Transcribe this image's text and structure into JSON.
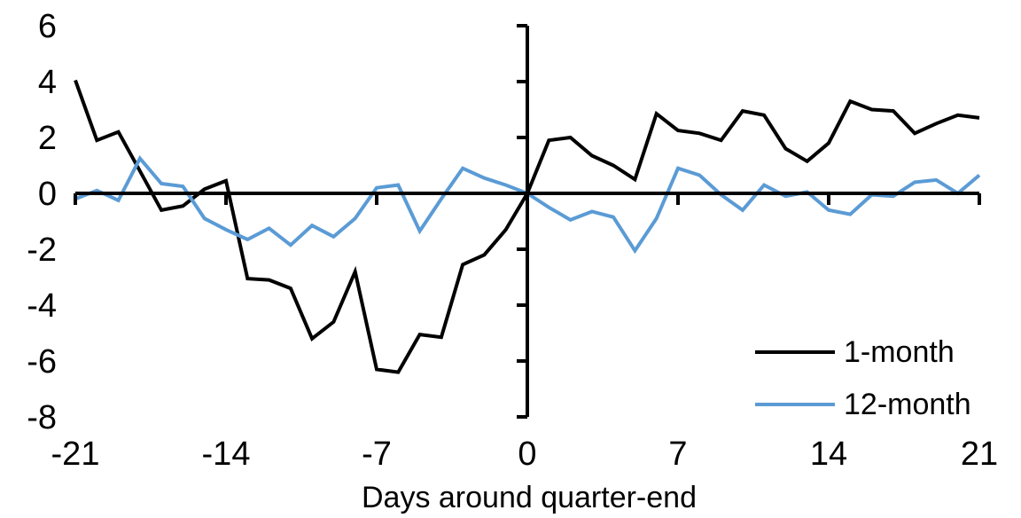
{
  "chart_data": {
    "type": "line",
    "title": "",
    "xlabel": "Days around quarter-end",
    "ylabel": "",
    "xlim": [
      -21,
      21
    ],
    "ylim": [
      -8,
      6
    ],
    "xticks": [
      -21,
      -14,
      -7,
      0,
      7,
      14,
      21
    ],
    "yticks": [
      6,
      4,
      2,
      0,
      -2,
      -4,
      -6,
      -8
    ],
    "grid": false,
    "axes_cross_at_zero": true,
    "legend_position": "lower-right",
    "axis_color": "#000000",
    "x": [
      -21,
      -20,
      -19,
      -18,
      -17,
      -16,
      -15,
      -14,
      -13,
      -12,
      -11,
      -10,
      -9,
      -8,
      -7,
      -6,
      -5,
      -4,
      -3,
      -2,
      -1,
      0,
      1,
      2,
      3,
      4,
      5,
      6,
      7,
      8,
      9,
      10,
      11,
      12,
      13,
      14,
      15,
      16,
      17,
      18,
      19,
      20,
      21
    ],
    "series": [
      {
        "name": "1-month",
        "color": "#000000",
        "values": [
          4.05,
          1.9,
          2.2,
          0.8,
          -0.6,
          -0.45,
          0.15,
          0.45,
          -3.05,
          -3.1,
          -3.4,
          -5.2,
          -4.6,
          -2.8,
          -6.3,
          -6.4,
          -5.05,
          -5.15,
          -2.55,
          -2.2,
          -1.3,
          0,
          1.9,
          2.0,
          1.35,
          1.0,
          0.5,
          2.85,
          2.25,
          2.15,
          1.9,
          2.95,
          2.8,
          1.6,
          1.15,
          1.8,
          3.3,
          3.0,
          2.95,
          2.15,
          2.5,
          2.8,
          2.7
        ]
      },
      {
        "name": "12-month",
        "color": "#5B9BD5",
        "values": [
          -0.2,
          0.1,
          -0.25,
          1.25,
          0.35,
          0.25,
          -0.9,
          -1.3,
          -1.65,
          -1.25,
          -1.85,
          -1.15,
          -1.55,
          -0.9,
          0.2,
          0.3,
          -1.35,
          -0.2,
          0.9,
          0.55,
          0.3,
          0,
          -0.5,
          -0.95,
          -0.65,
          -0.85,
          -2.05,
          -0.9,
          0.9,
          0.65,
          -0.05,
          -0.6,
          0.3,
          -0.1,
          0.05,
          -0.6,
          -0.75,
          -0.05,
          -0.1,
          0.4,
          0.48,
          0.0,
          0.65
        ]
      }
    ]
  }
}
